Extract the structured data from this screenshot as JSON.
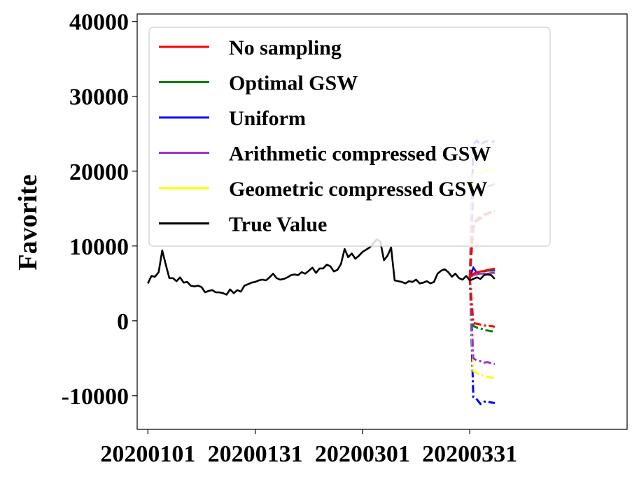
{
  "chart_data": {
    "type": "line",
    "ylabel": "Favorite",
    "xlabel": "",
    "ylim": [
      -14500,
      41000
    ],
    "xlim": [
      -3,
      134
    ],
    "x_ticks": [
      {
        "pos": 0,
        "label": "20200101"
      },
      {
        "pos": 30,
        "label": "20200131"
      },
      {
        "pos": 60,
        "label": "20200301"
      },
      {
        "pos": 90,
        "label": "20200331"
      }
    ],
    "y_ticks": [
      -10000,
      0,
      10000,
      20000,
      30000,
      40000
    ],
    "legend": {
      "placement": "top-left",
      "entries": [
        {
          "label": "No sampling",
          "color": "#ff0000"
        },
        {
          "label": "Optimal GSW",
          "color": "#008000"
        },
        {
          "label": "Uniform",
          "color": "#0000ff"
        },
        {
          "label": "Arithmetic compressed GSW",
          "color": "#9b30d0"
        },
        {
          "label": "Geometric compressed GSW",
          "color": "#ffff00"
        },
        {
          "label": "True Value",
          "color": "#000000"
        }
      ]
    },
    "true_value": {
      "name": "True Value",
      "color": "#000000",
      "start": 0,
      "values": [
        5000,
        6000,
        5900,
        6500,
        9400,
        7500,
        5700,
        5700,
        5300,
        5800,
        5100,
        5200,
        4700,
        4600,
        4700,
        4500,
        3800,
        4000,
        4100,
        3800,
        3800,
        3700,
        3500,
        4200,
        3700,
        4100,
        3900,
        4700,
        4900,
        5100,
        5200,
        5400,
        5500,
        5400,
        5800,
        6300,
        5700,
        5500,
        5600,
        5800,
        6100,
        6200,
        6100,
        6500,
        6300,
        6700,
        7100,
        6400,
        7000,
        7000,
        7500,
        7300,
        6600,
        6800,
        7600,
        9600,
        8500,
        9000,
        8300,
        8700,
        9200,
        9500,
        9800,
        10300,
        10900,
        10600,
        8100,
        8700,
        9800,
        5400,
        5300,
        5200,
        5000,
        5300,
        5200,
        5500,
        5000,
        5100,
        5300,
        5000,
        5200,
        6300,
        6700,
        6900,
        6500,
        5900,
        6300,
        5700,
        5500,
        6000,
        5400,
        5600,
        5800,
        5600,
        6100,
        6200,
        6100,
        5600
      ]
    },
    "forecast_x": [
      90,
      91,
      92,
      93,
      94,
      95,
      96,
      97
    ],
    "forecast_series": [
      {
        "color": "#0000ff",
        "center": [
          5800,
          7100,
          6400,
          6600,
          6600,
          6700,
          6700,
          6700
        ],
        "upper": [
          5800,
          23600,
          24100,
          23500,
          23900,
          24000,
          23900,
          24000
        ],
        "lower": [
          5800,
          -10200,
          -10500,
          -11100,
          -10800,
          -10800,
          -10900,
          -11000
        ]
      },
      {
        "color": "#ffff00",
        "center": [
          5800,
          6200,
          6200,
          6300,
          6300,
          6300,
          6300,
          6400
        ],
        "upper": [
          5800,
          19600,
          19800,
          19700,
          20000,
          20100,
          20100,
          20300
        ],
        "lower": [
          5800,
          -6700,
          -7000,
          -7200,
          -7400,
          -7500,
          -7600,
          -7700
        ]
      },
      {
        "color": "#9b30d0",
        "center": [
          5800,
          6100,
          6200,
          6300,
          6300,
          6300,
          6400,
          6400
        ],
        "upper": [
          5800,
          17200,
          17500,
          17600,
          17900,
          18000,
          18100,
          18300
        ],
        "lower": [
          5800,
          -5000,
          -5300,
          -5400,
          -5600,
          -5500,
          -5700,
          -5800
        ]
      },
      {
        "color": "#008000",
        "center": [
          5800,
          6300,
          6500,
          6600,
          6600,
          6700,
          6800,
          6900
        ],
        "upper": [
          5800,
          12900,
          13600,
          13900,
          14200,
          14400,
          14600,
          14700
        ],
        "lower": [
          5800,
          -700,
          -900,
          -1000,
          -1200,
          -1300,
          -1400,
          -1400
        ]
      },
      {
        "color": "#ff0000",
        "center": [
          5800,
          6300,
          6500,
          6600,
          6700,
          6800,
          6900,
          7000
        ],
        "upper": [
          5800,
          12400,
          13300,
          13700,
          14000,
          14300,
          14500,
          14600
        ],
        "lower": [
          5800,
          -300,
          -400,
          -500,
          -600,
          -700,
          -700,
          -800
        ]
      }
    ]
  }
}
